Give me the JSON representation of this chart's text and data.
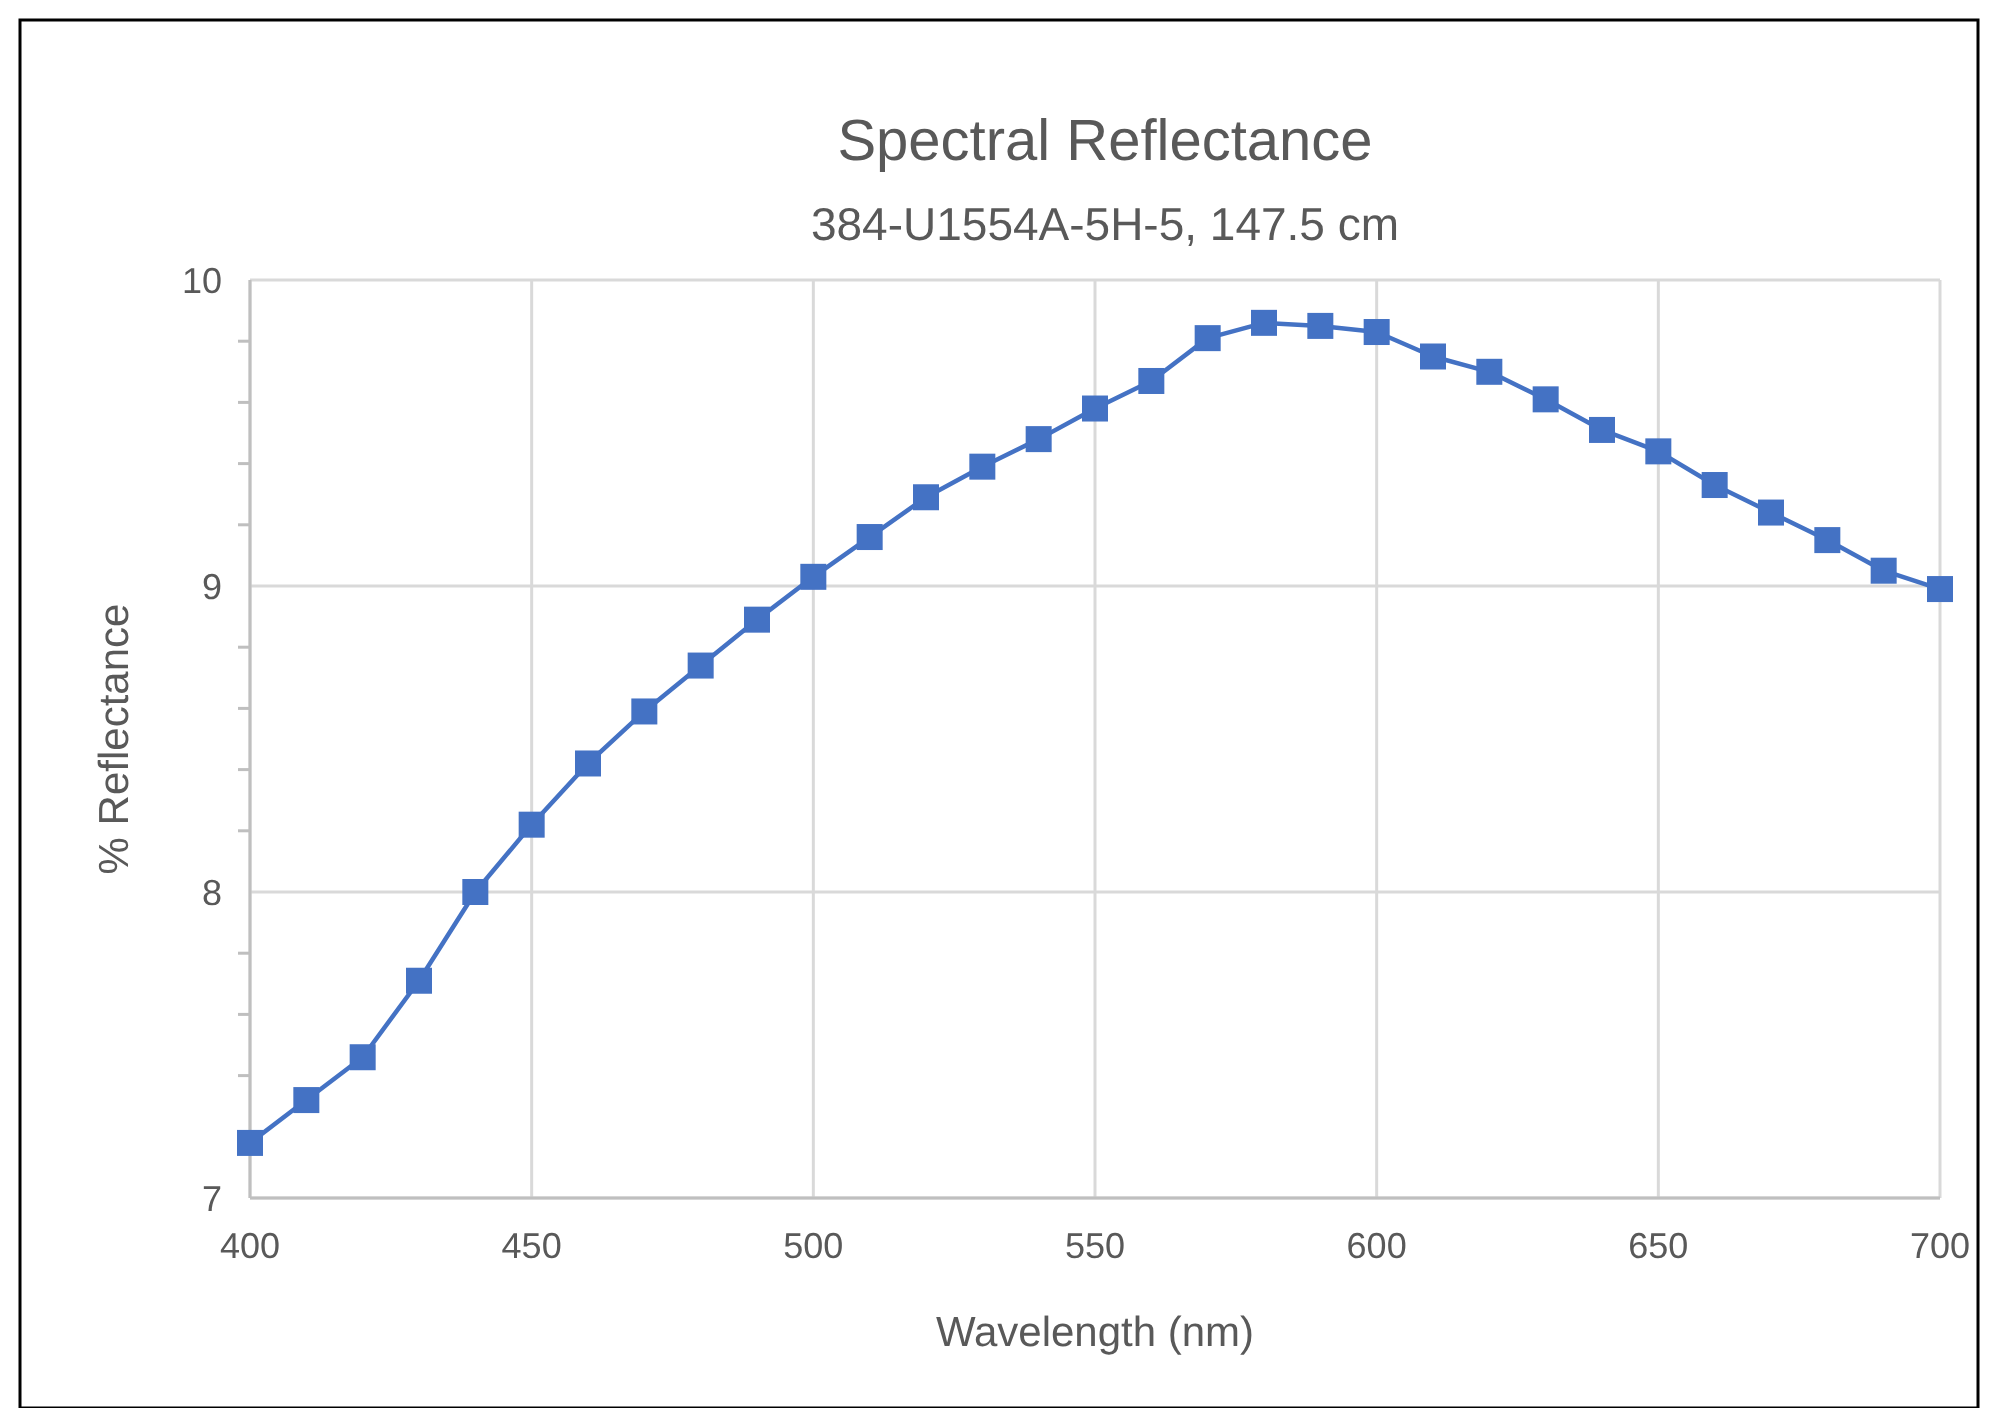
{
  "chart_data": {
    "type": "line",
    "title": "Spectral Reflectance",
    "subtitle": "384-U1554A-5H-5, 147.5 cm",
    "xlabel": "Wavelength (nm)",
    "ylabel": "% Reflectance",
    "x": [
      400,
      410,
      420,
      430,
      440,
      450,
      460,
      470,
      480,
      490,
      500,
      510,
      520,
      530,
      540,
      550,
      560,
      570,
      580,
      590,
      600,
      610,
      620,
      630,
      640,
      650,
      660,
      670,
      680,
      690,
      700
    ],
    "series": [
      {
        "color": "#4472c4",
        "values": [
          7.18,
          7.32,
          7.46,
          7.71,
          8.0,
          8.22,
          8.42,
          8.59,
          8.74,
          8.89,
          9.03,
          9.16,
          9.29,
          9.39,
          9.48,
          9.58,
          9.67,
          9.81,
          9.86,
          9.85,
          9.83,
          9.75,
          9.7,
          9.61,
          9.51,
          9.44,
          9.33,
          9.24,
          9.15,
          9.05,
          8.99
        ]
      }
    ],
    "xlim": [
      400,
      700
    ],
    "xticks": [
      400,
      450,
      500,
      550,
      600,
      650,
      700
    ],
    "ylim": [
      7,
      10
    ],
    "yticks": [
      7,
      {
        "value": 7.2,
        "label": null
      },
      {
        "value": 7.4,
        "label": null
      },
      {
        "value": 7.6,
        "label": null
      },
      {
        "value": 7.8,
        "label": null
      },
      8,
      {
        "value": 8.2,
        "label": null
      },
      {
        "value": 8.4,
        "label": null
      },
      {
        "value": 8.6,
        "label": null
      },
      {
        "value": 8.8,
        "label": null
      },
      9,
      {
        "value": 9.2,
        "label": null
      },
      {
        "value": 9.4,
        "label": null
      },
      {
        "value": 9.6,
        "label": null
      },
      {
        "value": 9.8,
        "label": null
      },
      10
    ],
    "grid": true,
    "marker": "square",
    "line_style": "solid"
  }
}
